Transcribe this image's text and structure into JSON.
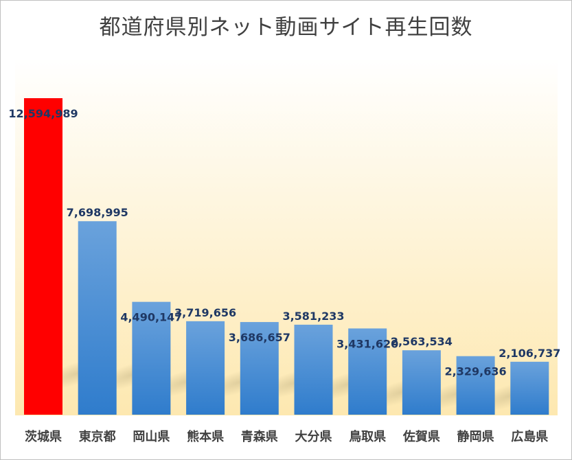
{
  "chart_data": {
    "type": "bar",
    "title": "都道府県別ネット動画サイト再生回数",
    "xlabel": "",
    "ylabel": "",
    "ylim": [
      0,
      12594989
    ],
    "categories": [
      "茨城県",
      "東京都",
      "岡山県",
      "熊本県",
      "青森県",
      "大分県",
      "鳥取県",
      "佐賀県",
      "静岡県",
      "広島県"
    ],
    "values": [
      12594989,
      7698995,
      4490147,
      3719656,
      3686657,
      3581233,
      3431620,
      2563534,
      2329636,
      2106737
    ],
    "value_labels": [
      "12,594,989",
      "7,698,995",
      "4,490,147",
      "3,719,656",
      "3,686,657",
      "3,581,233",
      "3,431,620",
      "2,563,534",
      "2,329,636",
      "2,106,737"
    ],
    "highlight_index": 0,
    "colors": {
      "highlight": "#ff0000",
      "bar_top": "#6aa2dc",
      "bar_bottom": "#2f7ccc",
      "value_text": "#1f3864",
      "category_text": "#404040",
      "plot_bg_top": "#ffffff",
      "plot_bg_bottom": "#fde8b0"
    },
    "grid": false,
    "legend": "none"
  }
}
